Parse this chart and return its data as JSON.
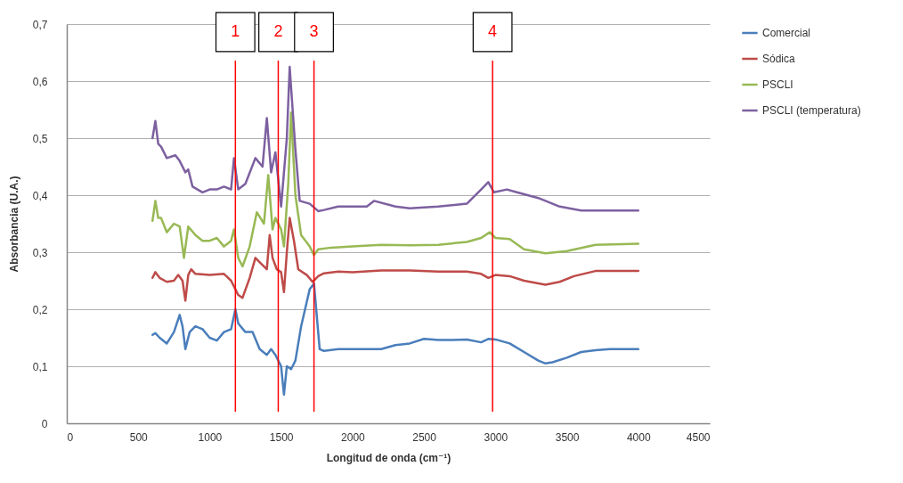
{
  "chart_data": {
    "type": "line",
    "xlabel": "Longitud de onda (cm⁻¹)",
    "ylabel": "Absorbancia (U.A.)",
    "xlim": [
      0,
      4500
    ],
    "xticks": [
      0,
      500,
      1000,
      1500,
      2000,
      2500,
      3000,
      3500,
      4000,
      4500
    ],
    "ylim": [
      0,
      0.7
    ],
    "yticks": [
      0,
      {
        "value": 0.1,
        "label": "0,1"
      },
      {
        "value": 0.2,
        "label": "0,2"
      },
      {
        "value": 0.3,
        "label": "0,3"
      },
      {
        "value": 0.4,
        "label": "0,4"
      },
      {
        "value": 0.5,
        "label": "0,5"
      },
      {
        "value": 0.6,
        "label": "0,6"
      },
      {
        "value": 0.7,
        "label": "0,7"
      }
    ],
    "grid": "y",
    "legend": "right",
    "line_style": "solid",
    "marker": "none",
    "ref_lines": [
      {
        "axis": "x",
        "value": 1180,
        "color": "#ff0000"
      },
      {
        "axis": "x",
        "value": 1480,
        "color": "#ff0000"
      },
      {
        "axis": "x",
        "value": 1730,
        "color": "#ff0000"
      },
      {
        "axis": "x",
        "value": 2980,
        "color": "#ff0000"
      }
    ],
    "annotations": [
      {
        "text": "1",
        "x": 1180
      },
      {
        "text": "2",
        "x": 1480
      },
      {
        "text": "3",
        "x": 1730
      },
      {
        "text": "4",
        "x": 2980
      }
    ],
    "series": [
      {
        "name": "Comercial",
        "color": "#4a7ebb",
        "x": [
          600,
          620,
          650,
          700,
          750,
          790,
          810,
          830,
          860,
          900,
          950,
          1000,
          1050,
          1100,
          1150,
          1180,
          1200,
          1250,
          1300,
          1350,
          1400,
          1430,
          1460,
          1500,
          1520,
          1540,
          1570,
          1600,
          1640,
          1700,
          1730,
          1770,
          1800,
          1900,
          2000,
          2100,
          2200,
          2300,
          2400,
          2500,
          2600,
          2700,
          2800,
          2900,
          2950,
          3000,
          3100,
          3200,
          3300,
          3350,
          3400,
          3500,
          3600,
          3700,
          3800,
          4000
        ],
        "values": [
          0.155,
          0.158,
          0.15,
          0.14,
          0.16,
          0.19,
          0.17,
          0.13,
          0.16,
          0.17,
          0.165,
          0.15,
          0.145,
          0.16,
          0.165,
          0.2,
          0.175,
          0.16,
          0.16,
          0.13,
          0.12,
          0.13,
          0.12,
          0.1,
          0.05,
          0.1,
          0.095,
          0.11,
          0.17,
          0.235,
          0.245,
          0.13,
          0.127,
          0.13,
          0.13,
          0.13,
          0.13,
          0.137,
          0.14,
          0.148,
          0.146,
          0.146,
          0.147,
          0.142,
          0.148,
          0.147,
          0.14,
          0.125,
          0.11,
          0.105,
          0.107,
          0.115,
          0.125,
          0.128,
          0.13,
          0.13
        ]
      },
      {
        "name": "Sódica",
        "color": "#be4b48",
        "x": [
          600,
          620,
          650,
          700,
          750,
          780,
          810,
          830,
          850,
          870,
          900,
          1000,
          1100,
          1150,
          1180,
          1200,
          1230,
          1280,
          1320,
          1360,
          1400,
          1420,
          1440,
          1470,
          1500,
          1520,
          1540,
          1560,
          1590,
          1620,
          1680,
          1720,
          1760,
          1800,
          1900,
          2000,
          2200,
          2400,
          2600,
          2800,
          2900,
          2950,
          3000,
          3100,
          3200,
          3350,
          3450,
          3550,
          3700,
          4000
        ],
        "values": [
          0.255,
          0.265,
          0.255,
          0.248,
          0.25,
          0.26,
          0.25,
          0.215,
          0.26,
          0.27,
          0.262,
          0.26,
          0.262,
          0.25,
          0.235,
          0.225,
          0.22,
          0.255,
          0.29,
          0.28,
          0.27,
          0.33,
          0.29,
          0.27,
          0.265,
          0.23,
          0.3,
          0.36,
          0.32,
          0.27,
          0.26,
          0.248,
          0.258,
          0.263,
          0.266,
          0.265,
          0.268,
          0.268,
          0.266,
          0.266,
          0.262,
          0.255,
          0.26,
          0.258,
          0.25,
          0.243,
          0.248,
          0.258,
          0.267,
          0.267
        ]
      },
      {
        "name": "PSCLI",
        "color": "#98b954",
        "x": [
          600,
          620,
          640,
          660,
          700,
          750,
          790,
          820,
          850,
          900,
          950,
          1000,
          1050,
          1100,
          1150,
          1170,
          1200,
          1230,
          1280,
          1330,
          1380,
          1410,
          1440,
          1460,
          1500,
          1520,
          1550,
          1570,
          1600,
          1640,
          1700,
          1730,
          1760,
          1850,
          2000,
          2200,
          2400,
          2600,
          2800,
          2900,
          2960,
          3000,
          3100,
          3200,
          3350,
          3500,
          3700,
          4000
        ],
        "values": [
          0.355,
          0.39,
          0.36,
          0.36,
          0.335,
          0.35,
          0.345,
          0.29,
          0.345,
          0.33,
          0.32,
          0.32,
          0.325,
          0.31,
          0.32,
          0.34,
          0.29,
          0.275,
          0.31,
          0.37,
          0.35,
          0.435,
          0.34,
          0.36,
          0.34,
          0.31,
          0.42,
          0.545,
          0.4,
          0.33,
          0.31,
          0.295,
          0.305,
          0.308,
          0.31,
          0.313,
          0.312,
          0.313,
          0.318,
          0.325,
          0.335,
          0.325,
          0.323,
          0.305,
          0.298,
          0.302,
          0.313,
          0.315
        ]
      },
      {
        "name": "PSCLI (temperatura)",
        "color": "#7d60a0",
        "x": [
          600,
          620,
          640,
          660,
          700,
          760,
          790,
          830,
          850,
          880,
          950,
          1000,
          1050,
          1100,
          1150,
          1170,
          1200,
          1250,
          1320,
          1370,
          1400,
          1430,
          1460,
          1500,
          1540,
          1560,
          1600,
          1630,
          1700,
          1760,
          1800,
          1900,
          2000,
          2100,
          2150,
          2300,
          2400,
          2600,
          2800,
          2900,
          2950,
          2990,
          3080,
          3150,
          3300,
          3450,
          3600,
          3800,
          4000
        ],
        "values": [
          0.5,
          0.53,
          0.49,
          0.485,
          0.465,
          0.47,
          0.46,
          0.44,
          0.445,
          0.415,
          0.405,
          0.41,
          0.41,
          0.415,
          0.41,
          0.465,
          0.41,
          0.42,
          0.465,
          0.45,
          0.535,
          0.44,
          0.475,
          0.38,
          0.5,
          0.625,
          0.48,
          0.39,
          0.385,
          0.372,
          0.374,
          0.38,
          0.38,
          0.38,
          0.39,
          0.38,
          0.377,
          0.38,
          0.385,
          0.41,
          0.423,
          0.405,
          0.41,
          0.405,
          0.395,
          0.38,
          0.373,
          0.373,
          0.373
        ]
      }
    ]
  }
}
